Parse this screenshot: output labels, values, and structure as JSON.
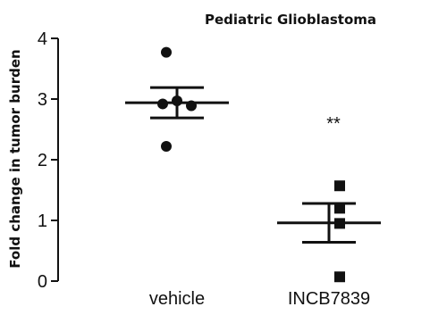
{
  "chart_data": {
    "type": "scatter",
    "title": "Pediatric Glioblastoma",
    "xlabel": "",
    "ylabel": "Fold change in tumor burden",
    "ylim": [
      0,
      4
    ],
    "yticks": [
      "0",
      "1",
      "2",
      "3",
      "4"
    ],
    "categories": [
      "vehicle",
      "INCB7839"
    ],
    "grid": false,
    "series": [
      {
        "category": "vehicle",
        "marker": "circle",
        "values": [
          3.77,
          2.97,
          2.92,
          2.89,
          2.22
        ],
        "mean": 2.94,
        "sem": 0.25
      },
      {
        "category": "INCB7839",
        "marker": "square",
        "values": [
          1.57,
          1.2,
          0.95,
          0.07
        ],
        "mean": 0.96,
        "sem": 0.32
      }
    ],
    "annotations": [
      {
        "text": "**",
        "category": "INCB7839",
        "y": 2.6
      }
    ],
    "colors": {
      "marks": "#111111"
    }
  }
}
